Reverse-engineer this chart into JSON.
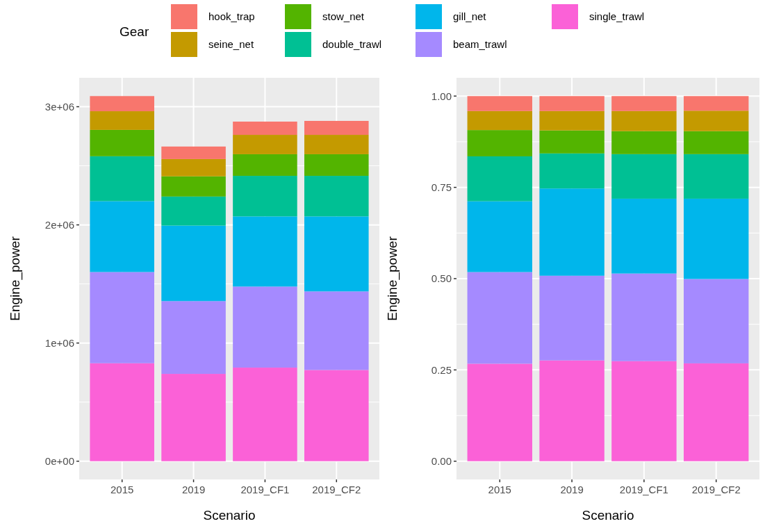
{
  "chart_data": [
    {
      "type": "bar",
      "stacked": true,
      "xlabel": "Scenario",
      "ylabel": "Engine_power",
      "legend_title": "Gear",
      "legend": "top",
      "grid": true,
      "categories": [
        "2015",
        "2019",
        "2019_CF1",
        "2019_CF2"
      ],
      "ylim": [
        -154500,
        3244500
      ],
      "yticks": [
        {
          "value": 0,
          "label": "0e+00"
        },
        {
          "value": 1000000,
          "label": "1e+06"
        },
        {
          "value": 2000000,
          "label": "2e+06"
        },
        {
          "value": 3000000,
          "label": "3e+06"
        }
      ],
      "series": [
        {
          "name": "single_trawl",
          "color": "#fb61d7",
          "values": [
            829000,
            739000,
            792000,
            772000
          ]
        },
        {
          "name": "beam_trawl",
          "color": "#a58aff",
          "values": [
            772000,
            616000,
            686000,
            665000
          ]
        },
        {
          "name": "gill_net",
          "color": "#00b6eb",
          "values": [
            600000,
            639000,
            594000,
            635000
          ]
        },
        {
          "name": "double_trawl",
          "color": "#00c094",
          "values": [
            380000,
            246000,
            343000,
            343000
          ]
        },
        {
          "name": "stow_net",
          "color": "#53b400",
          "values": [
            223000,
            171000,
            183000,
            183000
          ]
        },
        {
          "name": "seine_net",
          "color": "#c49a00",
          "values": [
            158000,
            146000,
            164000,
            164000
          ]
        },
        {
          "name": "hook_trap",
          "color": "#f8766d",
          "values": [
            128000,
            106000,
            112000,
            118000
          ]
        }
      ]
    },
    {
      "type": "bar",
      "stacked": true,
      "xlabel": "Scenario",
      "ylabel": "Engine_power",
      "grid": true,
      "categories": [
        "2015",
        "2019",
        "2019_CF1",
        "2019_CF2"
      ],
      "ylim": [
        -0.05,
        1.05
      ],
      "yticks": [
        {
          "value": 0,
          "label": "0.00"
        },
        {
          "value": 0.25,
          "label": "0.25"
        },
        {
          "value": 0.5,
          "label": "0.50"
        },
        {
          "value": 0.75,
          "label": "0.75"
        },
        {
          "value": 1,
          "label": "1.00"
        }
      ],
      "series": [
        {
          "color": "#fb61d7",
          "values": [
            0.267,
            0.276,
            0.274,
            0.268
          ]
        },
        {
          "color": "#a58aff",
          "values": [
            0.251,
            0.232,
            0.24,
            0.231
          ]
        },
        {
          "color": "#00b6eb",
          "values": [
            0.194,
            0.239,
            0.205,
            0.22
          ]
        },
        {
          "color": "#00c094",
          "values": [
            0.123,
            0.096,
            0.122,
            0.122
          ]
        },
        {
          "color": "#53b400",
          "values": [
            0.072,
            0.063,
            0.063,
            0.063
          ]
        },
        {
          "color": "#c49a00",
          "values": [
            0.052,
            0.053,
            0.055,
            0.056
          ]
        },
        {
          "color": "#f8766d",
          "values": [
            0.041,
            0.041,
            0.041,
            0.04
          ]
        }
      ]
    }
  ]
}
